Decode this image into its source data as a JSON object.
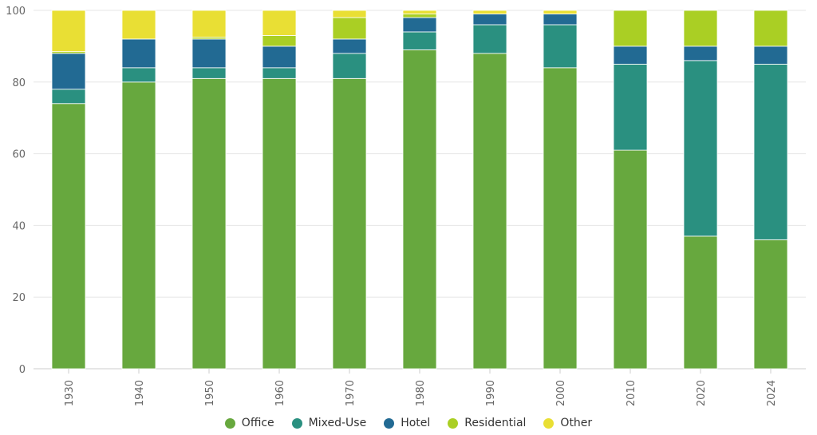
{
  "chart_data": {
    "type": "bar",
    "stacked": true,
    "title": "",
    "xlabel": "",
    "ylabel": "",
    "ylim": [
      0,
      100
    ],
    "yticks": [
      0,
      20,
      40,
      60,
      80,
      100
    ],
    "grid": true,
    "legend_position": "bottom",
    "categories": [
      "1930",
      "1940",
      "1950",
      "1960",
      "1970",
      "1980",
      "1990",
      "2000",
      "2010",
      "2020",
      "2024"
    ],
    "series": [
      {
        "name": "Office",
        "color": "#67a83e",
        "values": [
          74,
          80,
          81,
          81,
          81,
          89,
          88,
          84,
          61,
          37,
          36
        ]
      },
      {
        "name": "Mixed-Use",
        "color": "#2a9080",
        "values": [
          4,
          4,
          3,
          3,
          7,
          5,
          8,
          12,
          24,
          49,
          49
        ]
      },
      {
        "name": "Hotel",
        "color": "#226a93",
        "values": [
          10,
          8,
          8,
          6,
          4,
          4,
          3,
          3,
          5,
          4,
          5
        ]
      },
      {
        "name": "Residential",
        "color": "#aacf24",
        "values": [
          0.5,
          0,
          0.5,
          3,
          6,
          1,
          0,
          0,
          10,
          10,
          10
        ]
      },
      {
        "name": "Other",
        "color": "#e9df34",
        "values": [
          11.5,
          8,
          7.5,
          7,
          2,
          1,
          1,
          1,
          0,
          0,
          0
        ]
      }
    ]
  }
}
